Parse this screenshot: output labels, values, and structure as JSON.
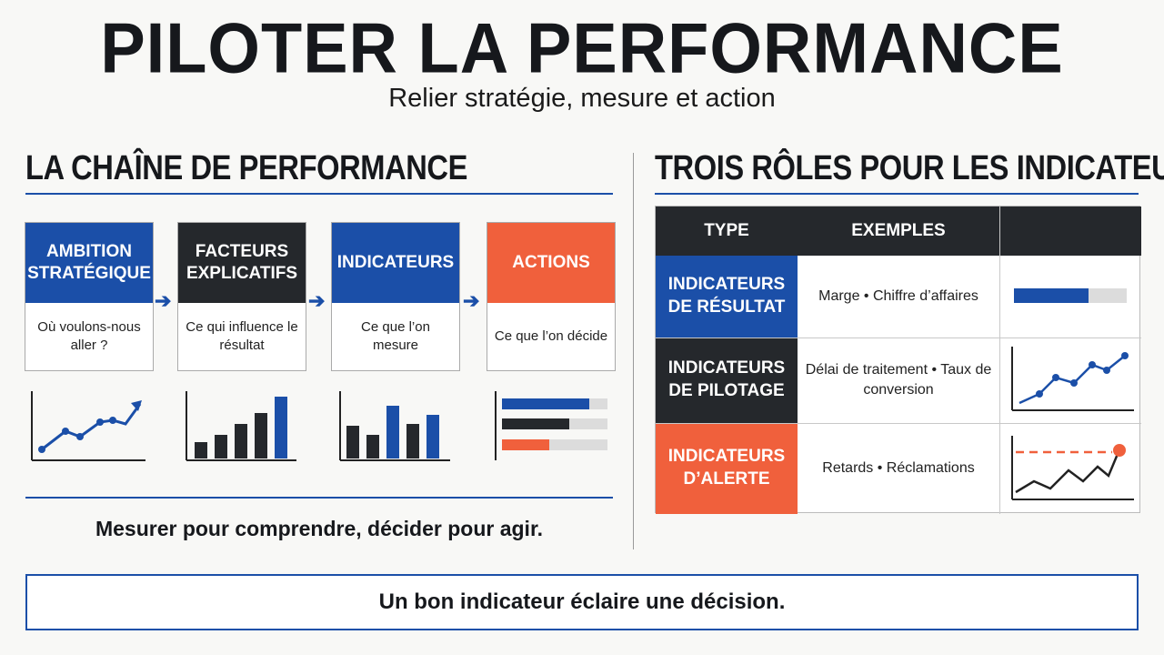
{
  "header": {
    "title": "PILOTER LA PERFORMANCE",
    "subtitle": "Relier stratégie, mesure et action"
  },
  "chain": {
    "section_title": "LA CHAÎNE DE PERFORMANCE",
    "steps": [
      {
        "title": "AMBITION STRATÉGIQUE",
        "description": "Où voulons-nous aller ?",
        "color": "#1b4fa8"
      },
      {
        "title": "FACTEURS EXPLICATIFS",
        "description": "Ce qui influence le résultat",
        "color": "#25282c"
      },
      {
        "title": "INDICATEURS",
        "description": "Ce que l’on mesure",
        "color": "#1b4fa8"
      },
      {
        "title": "ACTIONS",
        "description": "Ce que l’on décide",
        "color": "#f0603c"
      }
    ],
    "arrow_icon": "arrow-right-icon",
    "mini_icons": [
      "line-chart-icon",
      "bar-chart-icon",
      "bar-chart-icon",
      "horizontal-bar-icon"
    ],
    "tagline": "Mesurer pour comprendre, décider pour agir."
  },
  "roles": {
    "section_title": "TROIS RÔLES POUR LES INDICATEURS",
    "table": {
      "headers": [
        "TYPE",
        "EXEMPLES",
        ""
      ],
      "rows": [
        {
          "type": "INDICATEURS DE RÉSULTAT",
          "examples": "Marge • Chiffre d’affaires",
          "color": "#1b4fa8",
          "icon": "progress-bar-icon"
        },
        {
          "type": "INDICATEURS DE PILOTAGE",
          "examples": "Délai de traitement • Taux de conversion",
          "color": "#25282c",
          "icon": "rising-line-chart-icon"
        },
        {
          "type": "INDICATEURS D’ALERTE",
          "examples": "Retards • Réclamations",
          "color": "#f0603c",
          "icon": "threshold-alert-chart-icon"
        }
      ]
    }
  },
  "footer": {
    "message": "Un bon indicateur éclaire une décision."
  },
  "colors": {
    "blue": "#1b4fa8",
    "dark": "#25282c",
    "orange": "#f0603c",
    "light_gray": "#dcdcdc"
  }
}
